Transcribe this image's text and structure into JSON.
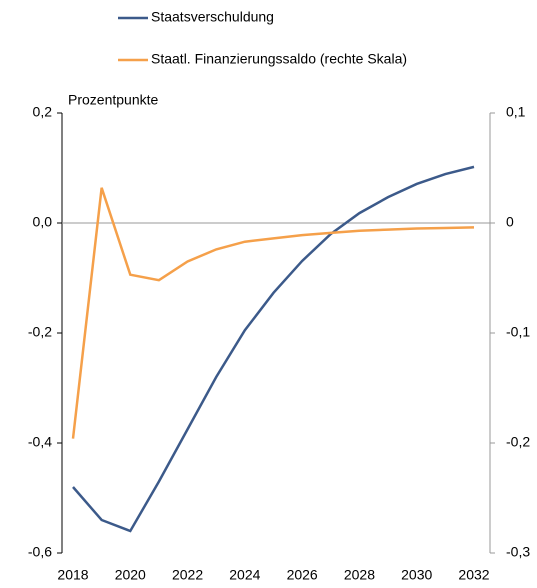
{
  "chart_data": {
    "type": "line",
    "y_label": "Prozentpunkte",
    "x": [
      2018,
      2019,
      2020,
      2021,
      2022,
      2023,
      2024,
      2025,
      2026,
      2027,
      2028,
      2029,
      2030,
      2031,
      2032
    ],
    "xlim": [
      2018,
      2032
    ],
    "xticks": [
      2018,
      2020,
      2022,
      2024,
      2026,
      2028,
      2030,
      2032
    ],
    "ylim": [
      -0.6,
      0.2
    ],
    "yticks": [
      {
        "value": -0.6,
        "label": "-0,6"
      },
      {
        "value": -0.4,
        "label": "-0,4"
      },
      {
        "value": -0.2,
        "label": "-0,2"
      },
      {
        "value": 0,
        "label": "0,0"
      },
      {
        "value": 0.2,
        "label": "0,2"
      }
    ],
    "y2lim": [
      -0.3,
      0.1
    ],
    "y2ticks": [
      {
        "value": -0.3,
        "label": "-0,3"
      },
      {
        "value": -0.2,
        "label": "-0,2"
      },
      {
        "value": -0.1,
        "label": "-0,1"
      },
      0,
      {
        "value": 0.1,
        "label": "0,1"
      }
    ],
    "series": [
      {
        "name": "Staatsverschuldung",
        "color": "#3c5a8a",
        "values": [
          -0.48,
          -0.54,
          -0.56,
          -0.47,
          -0.375,
          -0.28,
          -0.195,
          -0.127,
          -0.069,
          -0.02,
          0.018,
          0.047,
          0.071,
          0.089,
          0.102
        ]
      },
      {
        "name": "Staatl. Finanzierungssaldo (rechte Skala)",
        "color": "#f5a04a",
        "axis": "y2",
        "values": [
          -0.196,
          0.032,
          -0.047,
          -0.052,
          -0.035,
          -0.024,
          -0.017,
          -0.014,
          -0.011,
          -0.009,
          -0.007,
          -0.006,
          -0.005,
          -0.0045,
          -0.004
        ]
      }
    ]
  }
}
